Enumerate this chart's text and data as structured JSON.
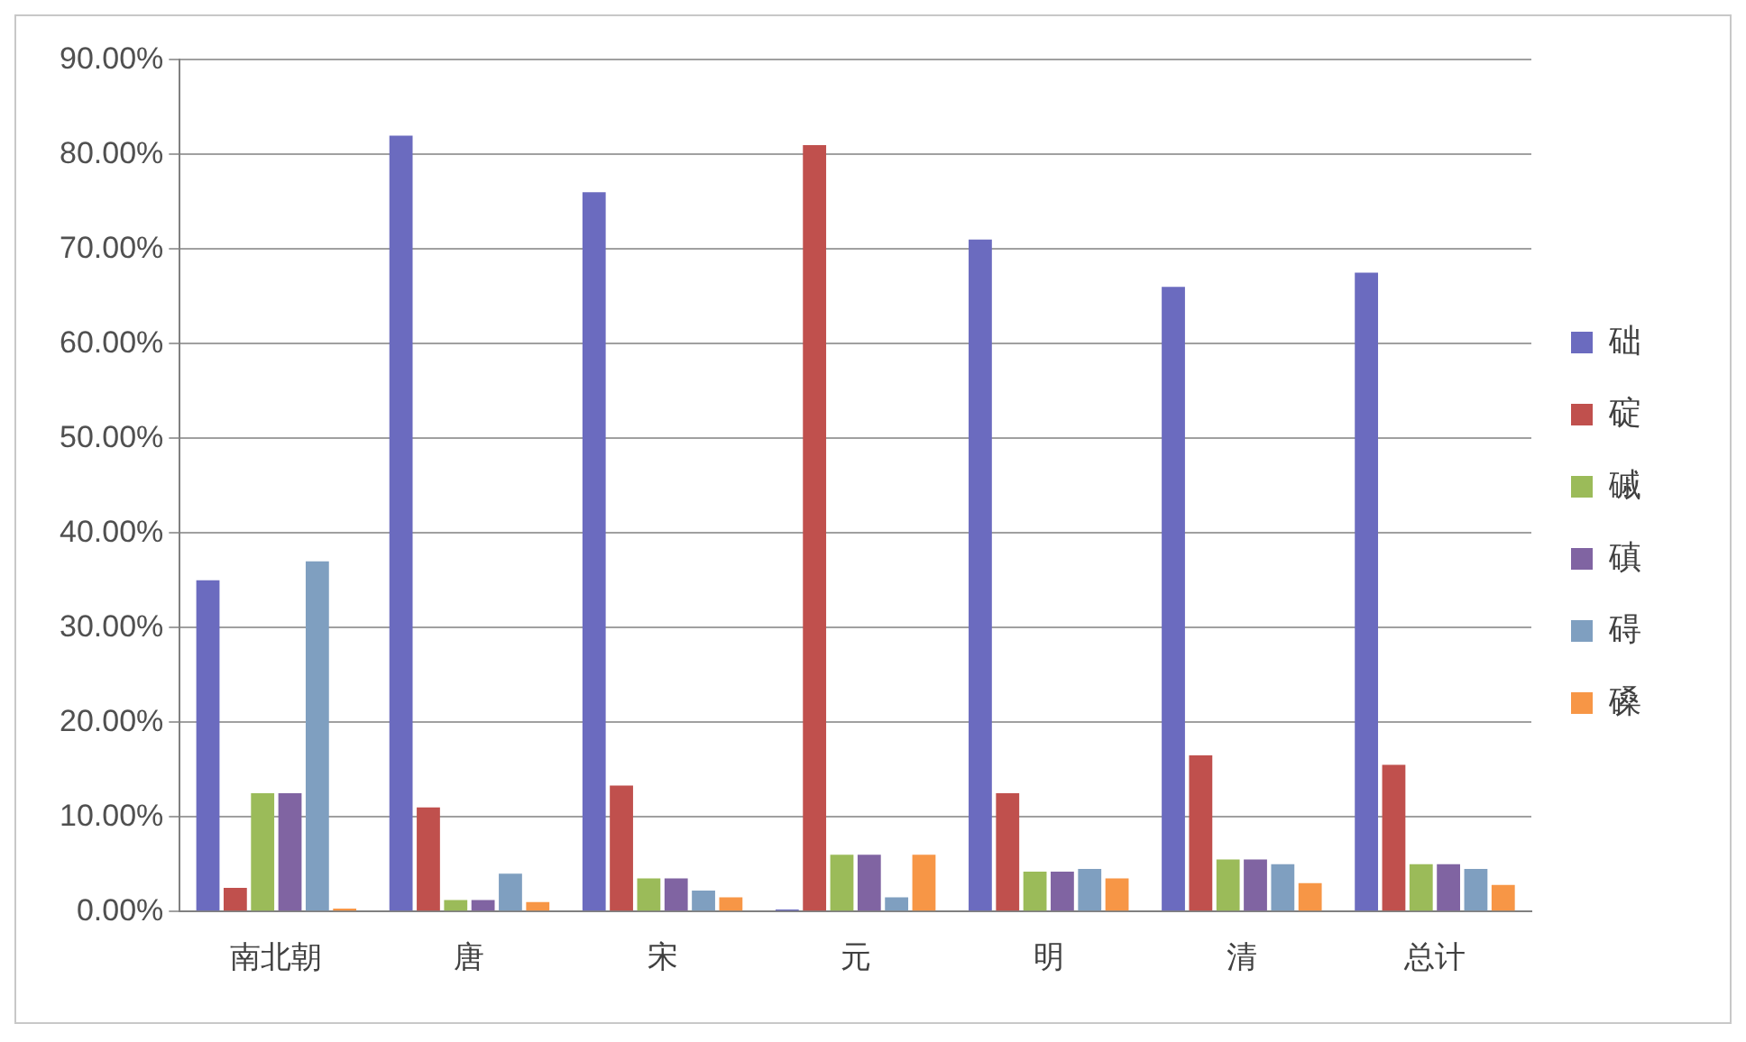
{
  "chart_data": {
    "type": "bar",
    "categories": [
      "南北朝",
      "唐",
      "宋",
      "元",
      "明",
      "清",
      "总计"
    ],
    "series": [
      {
        "name": "础",
        "color": "#6b6bbf",
        "values": [
          35,
          82,
          76,
          0.2,
          71,
          66,
          67.5
        ]
      },
      {
        "name": "碇",
        "color": "#c0504d",
        "values": [
          2.5,
          11,
          13.3,
          81,
          12.5,
          16.5,
          15.5
        ]
      },
      {
        "name": "磩",
        "color": "#9bbb59",
        "values": [
          12.5,
          1.2,
          3.5,
          6,
          4.2,
          5.5,
          5
        ]
      },
      {
        "name": "磌",
        "color": "#8064a2",
        "values": [
          12.5,
          1.2,
          3.5,
          6,
          4.2,
          5.5,
          5
        ]
      },
      {
        "name": "碍",
        "color": "#7f9fc0",
        "values": [
          37,
          4,
          2.2,
          1.5,
          4.5,
          5,
          4.5
        ]
      },
      {
        "name": "磉",
        "color": "#f79646",
        "values": [
          0.3,
          1,
          1.5,
          6,
          3.5,
          3,
          2.8
        ]
      }
    ],
    "ylim": [
      0,
      90
    ],
    "yticks": [
      {
        "value": 0,
        "label": "0.00%"
      },
      {
        "value": 10,
        "label": "10.00%"
      },
      {
        "value": 20,
        "label": "20.00%"
      },
      {
        "value": 30,
        "label": "30.00%"
      },
      {
        "value": 40,
        "label": "40.00%"
      },
      {
        "value": 50,
        "label": "50.00%"
      },
      {
        "value": 60,
        "label": "60.00%"
      },
      {
        "value": 70,
        "label": "70.00%"
      },
      {
        "value": 80,
        "label": "80.00%"
      },
      {
        "value": 90,
        "label": "90.00%"
      }
    ],
    "grid": "y",
    "legend": "right"
  }
}
